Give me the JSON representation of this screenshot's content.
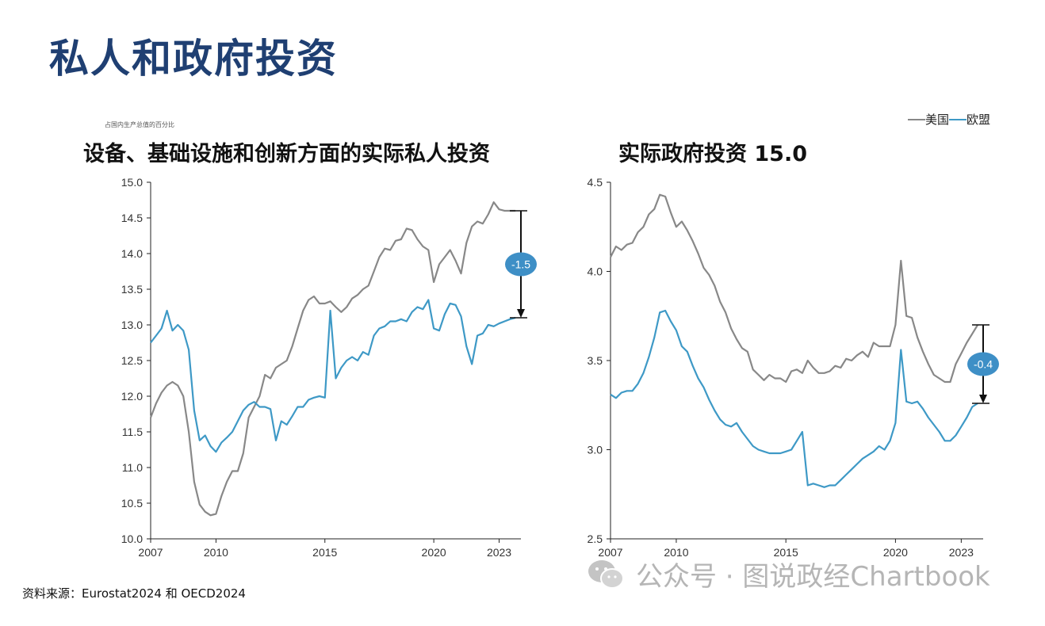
{
  "page": {
    "title": "私人和政府投资",
    "unit_note": "占国内生产总值的百分比",
    "source": "资料来源：Eurostat2024 和 OECD2024",
    "watermark": "公众号 · 图说政经Chartbook"
  },
  "colors": {
    "us": "#888888",
    "eu": "#3e99c6",
    "badge": "#3e8fc6"
  },
  "legend": {
    "us": "美国",
    "eu": "欧盟"
  },
  "chart_data": [
    {
      "type": "line",
      "title": "设备、基础设施和创新方面的实际私人投资",
      "ylabel": "占国内生产总值的百分比",
      "xlim": [
        2007,
        2024
      ],
      "ylim": [
        10.0,
        15.0
      ],
      "yticks": [
        "10.0",
        "10.5",
        "11.0",
        "11.5",
        "12.0",
        "12.5",
        "13.0",
        "13.5",
        "14.0",
        "14.5",
        "15.0"
      ],
      "xticks": [
        2007,
        2010,
        2015,
        2020,
        2023
      ],
      "annotation": {
        "label": "-1.5",
        "x": 2024,
        "from": 14.6,
        "to": 13.1
      },
      "series": [
        {
          "name": "美国",
          "x": [
            2007,
            2007.25,
            2007.5,
            2007.75,
            2008,
            2008.25,
            2008.5,
            2008.75,
            2009,
            2009.25,
            2009.5,
            2009.75,
            2010,
            2010.25,
            2010.5,
            2010.75,
            2011,
            2011.25,
            2011.5,
            2011.75,
            2012,
            2012.25,
            2012.5,
            2012.75,
            2013,
            2013.25,
            2013.5,
            2013.75,
            2014,
            2014.25,
            2014.5,
            2014.75,
            2015,
            2015.25,
            2015.5,
            2015.75,
            2016,
            2016.25,
            2016.5,
            2016.75,
            2017,
            2017.25,
            2017.5,
            2017.75,
            2018,
            2018.25,
            2018.5,
            2018.75,
            2019,
            2019.25,
            2019.5,
            2019.75,
            2020,
            2020.25,
            2020.5,
            2020.75,
            2021,
            2021.25,
            2021.5,
            2021.75,
            2022,
            2022.25,
            2022.5,
            2022.75,
            2023,
            2023.25,
            2023.5,
            2023.75
          ],
          "values": [
            11.7,
            11.9,
            12.05,
            12.15,
            12.2,
            12.15,
            12.0,
            11.5,
            10.8,
            10.48,
            10.38,
            10.33,
            10.35,
            10.6,
            10.8,
            10.95,
            10.95,
            11.2,
            11.7,
            11.85,
            12.0,
            12.3,
            12.25,
            12.4,
            12.45,
            12.5,
            12.7,
            12.95,
            13.2,
            13.35,
            13.4,
            13.3,
            13.3,
            13.33,
            13.25,
            13.18,
            13.25,
            13.37,
            13.42,
            13.5,
            13.55,
            13.75,
            13.95,
            14.07,
            14.05,
            14.18,
            14.2,
            14.35,
            14.33,
            14.2,
            14.1,
            14.05,
            13.6,
            13.85,
            13.95,
            14.05,
            13.9,
            13.72,
            14.15,
            14.38,
            14.45,
            14.42,
            14.55,
            14.72,
            14.62,
            14.6,
            14.6,
            14.6
          ]
        },
        {
          "name": "欧盟",
          "x": [
            2007,
            2007.25,
            2007.5,
            2007.75,
            2008,
            2008.25,
            2008.5,
            2008.75,
            2009,
            2009.25,
            2009.5,
            2009.75,
            2010,
            2010.25,
            2010.5,
            2010.75,
            2011,
            2011.25,
            2011.5,
            2011.75,
            2012,
            2012.25,
            2012.5,
            2012.75,
            2013,
            2013.25,
            2013.5,
            2013.75,
            2014,
            2014.25,
            2014.5,
            2014.75,
            2015,
            2015.25,
            2015.5,
            2015.75,
            2016,
            2016.25,
            2016.5,
            2016.75,
            2017,
            2017.25,
            2017.5,
            2017.75,
            2018,
            2018.25,
            2018.5,
            2018.75,
            2019,
            2019.25,
            2019.5,
            2019.75,
            2020,
            2020.25,
            2020.5,
            2020.75,
            2021,
            2021.25,
            2021.5,
            2021.75,
            2022,
            2022.25,
            2022.5,
            2022.75,
            2023,
            2023.25,
            2023.5,
            2023.75
          ],
          "values": [
            12.75,
            12.85,
            12.95,
            13.2,
            12.92,
            13.0,
            12.92,
            12.65,
            11.8,
            11.38,
            11.45,
            11.3,
            11.22,
            11.35,
            11.42,
            11.5,
            11.65,
            11.8,
            11.88,
            11.92,
            11.85,
            11.85,
            11.82,
            11.38,
            11.65,
            11.6,
            11.72,
            11.85,
            11.85,
            11.95,
            11.98,
            12.0,
            11.98,
            13.2,
            12.25,
            12.4,
            12.5,
            12.55,
            12.5,
            12.62,
            12.58,
            12.85,
            12.95,
            12.98,
            13.05,
            13.05,
            13.08,
            13.05,
            13.18,
            13.25,
            13.22,
            13.35,
            12.95,
            12.92,
            13.15,
            13.3,
            13.28,
            13.12,
            12.7,
            12.45,
            12.85,
            12.88,
            13.0,
            12.98,
            13.02,
            13.05,
            13.08,
            13.1
          ]
        }
      ]
    },
    {
      "type": "line",
      "title": "实际政府投资 15.0",
      "xlim": [
        2007,
        2024
      ],
      "ylim": [
        2.5,
        4.5
      ],
      "yticks": [
        "2.5",
        "3.0",
        "3.5",
        "4.0",
        "4.5"
      ],
      "xticks": [
        2007,
        2010,
        2015,
        2020,
        2023
      ],
      "annotation": {
        "label": "-0.4",
        "x": 2024,
        "from": 3.7,
        "to": 3.26
      },
      "series": [
        {
          "name": "美国",
          "x": [
            2007,
            2007.25,
            2007.5,
            2007.75,
            2008,
            2008.25,
            2008.5,
            2008.75,
            2009,
            2009.25,
            2009.5,
            2009.75,
            2010,
            2010.25,
            2010.5,
            2010.75,
            2011,
            2011.25,
            2011.5,
            2011.75,
            2012,
            2012.25,
            2012.5,
            2012.75,
            2013,
            2013.25,
            2013.5,
            2013.75,
            2014,
            2014.25,
            2014.5,
            2014.75,
            2015,
            2015.25,
            2015.5,
            2015.75,
            2016,
            2016.25,
            2016.5,
            2016.75,
            2017,
            2017.25,
            2017.5,
            2017.75,
            2018,
            2018.25,
            2018.5,
            2018.75,
            2019,
            2019.25,
            2019.5,
            2019.75,
            2020,
            2020.25,
            2020.5,
            2020.75,
            2021,
            2021.25,
            2021.5,
            2021.75,
            2022,
            2022.25,
            2022.5,
            2022.75,
            2023,
            2023.25,
            2023.5,
            2023.75
          ],
          "values": [
            4.08,
            4.14,
            4.12,
            4.15,
            4.16,
            4.22,
            4.25,
            4.32,
            4.35,
            4.43,
            4.42,
            4.33,
            4.25,
            4.28,
            4.23,
            4.17,
            4.1,
            4.02,
            3.98,
            3.92,
            3.83,
            3.77,
            3.68,
            3.62,
            3.57,
            3.55,
            3.45,
            3.42,
            3.39,
            3.42,
            3.4,
            3.4,
            3.38,
            3.44,
            3.45,
            3.43,
            3.5,
            3.46,
            3.43,
            3.43,
            3.44,
            3.47,
            3.46,
            3.51,
            3.5,
            3.53,
            3.55,
            3.52,
            3.6,
            3.58,
            3.58,
            3.58,
            3.7,
            4.06,
            3.75,
            3.74,
            3.63,
            3.55,
            3.48,
            3.42,
            3.4,
            3.38,
            3.38,
            3.48,
            3.54,
            3.6,
            3.65,
            3.7
          ]
        },
        {
          "name": "欧盟",
          "x": [
            2007,
            2007.25,
            2007.5,
            2007.75,
            2008,
            2008.25,
            2008.5,
            2008.75,
            2009,
            2009.25,
            2009.5,
            2009.75,
            2010,
            2010.25,
            2010.5,
            2010.75,
            2011,
            2011.25,
            2011.5,
            2011.75,
            2012,
            2012.25,
            2012.5,
            2012.75,
            2013,
            2013.25,
            2013.5,
            2013.75,
            2014,
            2014.25,
            2014.5,
            2014.75,
            2015,
            2015.25,
            2015.5,
            2015.75,
            2016,
            2016.25,
            2016.5,
            2016.75,
            2017,
            2017.25,
            2017.5,
            2017.75,
            2018,
            2018.25,
            2018.5,
            2018.75,
            2019,
            2019.25,
            2019.5,
            2019.75,
            2020,
            2020.25,
            2020.5,
            2020.75,
            2021,
            2021.25,
            2021.5,
            2021.75,
            2022,
            2022.25,
            2022.5,
            2022.75,
            2023,
            2023.25,
            2023.5,
            2023.75
          ],
          "values": [
            3.31,
            3.29,
            3.32,
            3.33,
            3.33,
            3.37,
            3.43,
            3.52,
            3.63,
            3.77,
            3.78,
            3.72,
            3.67,
            3.58,
            3.55,
            3.47,
            3.4,
            3.35,
            3.28,
            3.22,
            3.17,
            3.14,
            3.13,
            3.15,
            3.1,
            3.06,
            3.02,
            3.0,
            2.99,
            2.98,
            2.98,
            2.98,
            2.99,
            3.0,
            3.05,
            3.1,
            2.8,
            2.81,
            2.8,
            2.79,
            2.8,
            2.8,
            2.83,
            2.86,
            2.89,
            2.92,
            2.95,
            2.97,
            2.99,
            3.02,
            3.0,
            3.05,
            3.15,
            3.56,
            3.27,
            3.26,
            3.27,
            3.23,
            3.18,
            3.14,
            3.1,
            3.05,
            3.05,
            3.08,
            3.13,
            3.18,
            3.24,
            3.26
          ]
        }
      ]
    }
  ]
}
